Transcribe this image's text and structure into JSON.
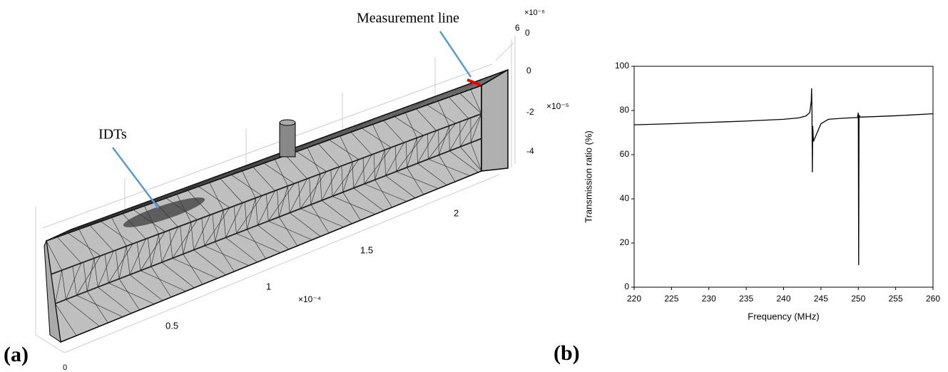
{
  "panel_labels": [
    "(a)",
    "(b)"
  ],
  "mesh_figure": {
    "annotations": [
      "Measurement line",
      "IDTs"
    ],
    "axis_labels": [
      "×10⁻⁶",
      "6",
      "0",
      "0",
      "×10⁻⁵",
      "-2",
      "-4",
      "2",
      "1.5",
      "1",
      "×10⁻⁴",
      "0.5",
      "0"
    ]
  },
  "chart_data": {
    "type": "line",
    "x_label": "Frequency (MHz)",
    "y_label": "Transmission ratio (%)",
    "x": [
      220,
      225,
      230,
      235,
      240,
      242,
      243,
      243.5,
      243.7,
      243.75,
      243.8,
      243.85,
      243.9,
      244,
      244.5,
      245,
      246,
      248,
      249.9,
      250,
      250.05,
      250.1,
      250.2,
      252,
      255,
      260
    ],
    "series": [
      {
        "color": "#000000",
        "values": [
          73.5,
          74,
          74.6,
          75.2,
          76,
          76.6,
          77.5,
          79,
          84,
          90,
          80,
          52,
          73,
          66,
          70,
          74,
          76,
          76.5,
          76.8,
          79,
          10,
          78,
          77,
          77.2,
          77.6,
          78.5
        ]
      }
    ],
    "xlim": [
      220,
      260
    ],
    "xticks": [
      220,
      225,
      230,
      235,
      240,
      245,
      250,
      255,
      260
    ],
    "ylim": [
      0,
      100
    ],
    "yticks": [
      0,
      20,
      40,
      60,
      80,
      100
    ]
  }
}
